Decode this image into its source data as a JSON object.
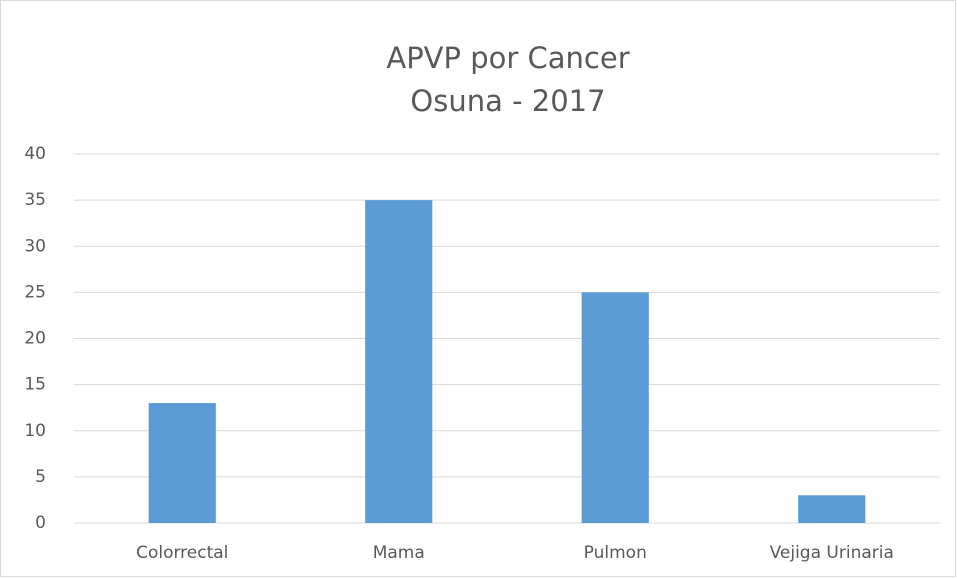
{
  "chart_data": {
    "type": "bar",
    "title": "APVP por Cancer",
    "subtitle": "Osuna - 2017",
    "categories": [
      "Colorrectal",
      "Mama",
      "Pulmon",
      "Vejiga Urinaria"
    ],
    "values": [
      13,
      35,
      25,
      3
    ],
    "color": "#5b9bd5",
    "ylim": [
      0,
      40
    ],
    "yticks": [
      0,
      5,
      10,
      15,
      20,
      25,
      30,
      35,
      40
    ],
    "grid": true
  }
}
